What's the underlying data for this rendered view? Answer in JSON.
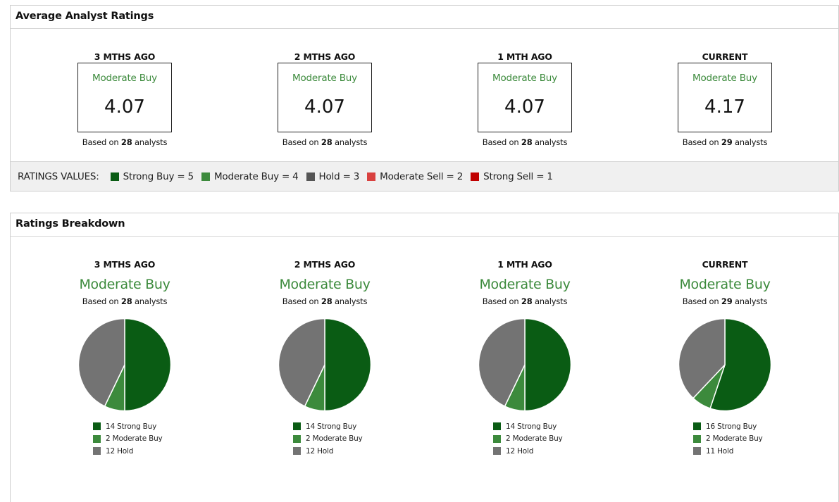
{
  "avg_panel": {
    "title": "Average Analyst Ratings",
    "columns": [
      {
        "head": "3 MTHS AGO",
        "label": "Moderate Buy",
        "value": "4.07",
        "based_prefix": "Based on ",
        "count": "28",
        "based_suffix": " analysts"
      },
      {
        "head": "2 MTHS AGO",
        "label": "Moderate Buy",
        "value": "4.07",
        "based_prefix": "Based on ",
        "count": "28",
        "based_suffix": " analysts"
      },
      {
        "head": "1 MTH AGO",
        "label": "Moderate Buy",
        "value": "4.07",
        "based_prefix": "Based on ",
        "count": "28",
        "based_suffix": " analysts"
      },
      {
        "head": "CURRENT",
        "label": "Moderate Buy",
        "value": "4.17",
        "based_prefix": "Based on ",
        "count": "29",
        "based_suffix": " analysts"
      }
    ],
    "ratings_values": {
      "title": "RATINGS VALUES:",
      "items": [
        {
          "label": "Strong Buy = 5",
          "color": "#0a5c14"
        },
        {
          "label": "Moderate Buy = 4",
          "color": "#3c8a3c"
        },
        {
          "label": "Hold = 3",
          "color": "#555555"
        },
        {
          "label": "Moderate Sell = 2",
          "color": "#d9413f"
        },
        {
          "label": "Strong Sell = 1",
          "color": "#c00000"
        }
      ]
    }
  },
  "breakdown_panel": {
    "title": "Ratings Breakdown",
    "columns": [
      {
        "head": "3 MTHS AGO",
        "label": "Moderate Buy",
        "based_prefix": "Based on ",
        "count": "28",
        "based_suffix": " analysts",
        "legend": [
          "14 Strong Buy",
          "2 Moderate Buy",
          "12 Hold"
        ]
      },
      {
        "head": "2 MTHS AGO",
        "label": "Moderate Buy",
        "based_prefix": "Based on ",
        "count": "28",
        "based_suffix": " analysts",
        "legend": [
          "14 Strong Buy",
          "2 Moderate Buy",
          "12 Hold"
        ]
      },
      {
        "head": "1 MTH AGO",
        "label": "Moderate Buy",
        "based_prefix": "Based on ",
        "count": "28",
        "based_suffix": " analysts",
        "legend": [
          "14 Strong Buy",
          "2 Moderate Buy",
          "12 Hold"
        ]
      },
      {
        "head": "CURRENT",
        "label": "Moderate Buy",
        "based_prefix": "Based on ",
        "count": "29",
        "based_suffix": " analysts",
        "legend": [
          "16 Strong Buy",
          "2 Moderate Buy",
          "11 Hold"
        ]
      }
    ]
  },
  "colors": {
    "strong_buy": "#0a5c14",
    "moderate_buy": "#3c8a3c",
    "hold": "#737373"
  },
  "chart_data": [
    {
      "type": "pie",
      "title": "3 MTHS AGO",
      "categories": [
        "Strong Buy",
        "Moderate Buy",
        "Hold"
      ],
      "values": [
        14,
        2,
        12
      ]
    },
    {
      "type": "pie",
      "title": "2 MTHS AGO",
      "categories": [
        "Strong Buy",
        "Moderate Buy",
        "Hold"
      ],
      "values": [
        14,
        2,
        12
      ]
    },
    {
      "type": "pie",
      "title": "1 MTH AGO",
      "categories": [
        "Strong Buy",
        "Moderate Buy",
        "Hold"
      ],
      "values": [
        14,
        2,
        12
      ]
    },
    {
      "type": "pie",
      "title": "CURRENT",
      "categories": [
        "Strong Buy",
        "Moderate Buy",
        "Hold"
      ],
      "values": [
        16,
        2,
        11
      ]
    }
  ]
}
